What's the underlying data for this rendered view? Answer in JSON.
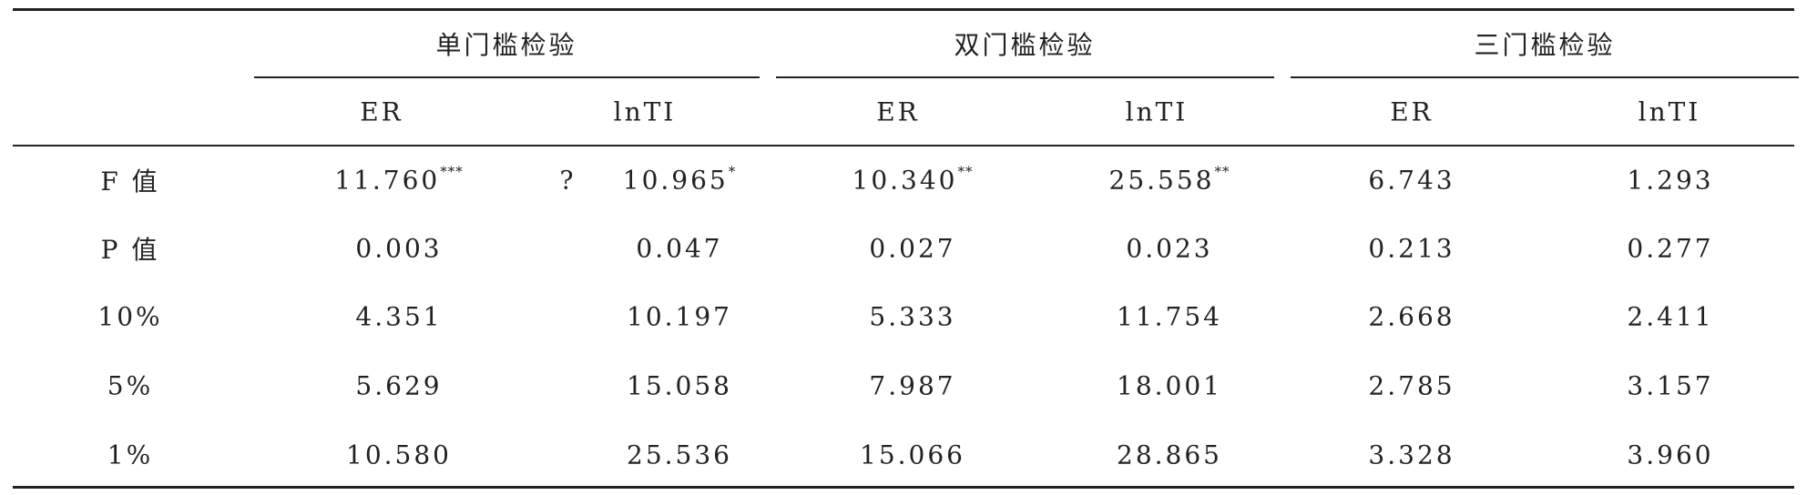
{
  "table": {
    "groups": [
      "单门槛检验",
      "双门槛检验",
      "三门槛检验"
    ],
    "subheaders": [
      "ER",
      "lnTI",
      "ER",
      "lnTI",
      "ER",
      "lnTI"
    ],
    "rows": [
      {
        "label": "F 值",
        "cells": [
          {
            "text": "11.760",
            "sup": "***"
          },
          {
            "prefix": "?",
            "text": "10.965",
            "sup": "*"
          },
          {
            "text": "10.340",
            "sup": "**"
          },
          {
            "text": "25.558",
            "sup": "**"
          },
          {
            "text": "6.743"
          },
          {
            "text": "1.293"
          }
        ]
      },
      {
        "label": "P 值",
        "cells": [
          {
            "text": "0.003"
          },
          {
            "text": "0.047"
          },
          {
            "text": "0.027"
          },
          {
            "text": "0.023"
          },
          {
            "text": "0.213"
          },
          {
            "text": "0.277"
          }
        ]
      },
      {
        "label": "10%",
        "cells": [
          {
            "text": "4.351"
          },
          {
            "text": "10.197"
          },
          {
            "text": "5.333"
          },
          {
            "text": "11.754"
          },
          {
            "text": "2.668"
          },
          {
            "text": "2.411"
          }
        ]
      },
      {
        "label": "5%",
        "cells": [
          {
            "text": "5.629"
          },
          {
            "text": "15.058"
          },
          {
            "text": "7.987"
          },
          {
            "text": "18.001"
          },
          {
            "text": "2.785"
          },
          {
            "text": "3.157"
          }
        ]
      },
      {
        "label": "1%",
        "cells": [
          {
            "text": "10.580"
          },
          {
            "text": "25.536"
          },
          {
            "text": "15.066"
          },
          {
            "text": "28.865"
          },
          {
            "text": "3.328"
          },
          {
            "text": "3.960"
          }
        ]
      }
    ]
  }
}
